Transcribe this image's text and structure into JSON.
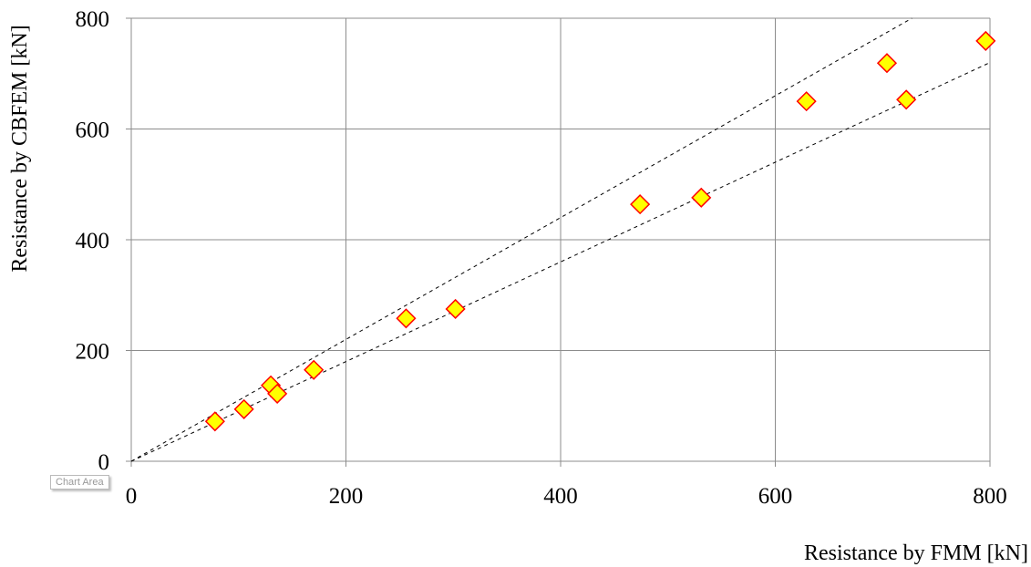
{
  "chart_data": {
    "type": "scatter",
    "xlabel": "Resistance by FMM [kN]",
    "ylabel": "Resistance by CBFEM [kN]",
    "xlim": [
      0,
      800
    ],
    "ylim": [
      0,
      800
    ],
    "xticks": [
      0,
      200,
      400,
      600,
      800
    ],
    "yticks": [
      0,
      200,
      400,
      600,
      800
    ],
    "grid": true,
    "marker": {
      "shape": "diamond",
      "fill": "#FFFF00",
      "stroke": "#FF0000"
    },
    "series": [
      {
        "points": [
          [
            78,
            72
          ],
          [
            105,
            94
          ],
          [
            130,
            137
          ],
          [
            136,
            122
          ],
          [
            170,
            165
          ],
          [
            256,
            258
          ],
          [
            302,
            275
          ],
          [
            474,
            464
          ],
          [
            531,
            476
          ],
          [
            629,
            650
          ],
          [
            704,
            719
          ],
          [
            722,
            653
          ],
          [
            796,
            759
          ]
        ]
      }
    ],
    "reference_lines": [
      {
        "slope": 1.1,
        "style": "dashed",
        "color": "#000000"
      },
      {
        "slope": 0.9,
        "style": "dashed",
        "color": "#000000"
      }
    ]
  },
  "tooltip": "Chart Area"
}
